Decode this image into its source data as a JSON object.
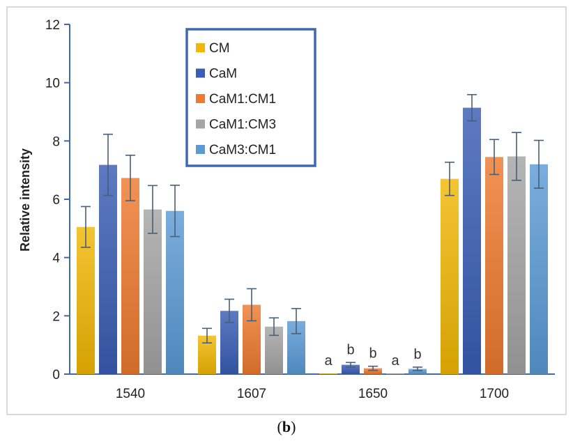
{
  "chart_data": {
    "type": "bar",
    "title": "",
    "xlabel": "",
    "ylabel": "Relative intensity",
    "ylim": [
      0,
      12
    ],
    "yticks": [
      "0",
      "2",
      "4",
      "6",
      "8",
      "10",
      "12"
    ],
    "categories": [
      "1540",
      "1607",
      "1650",
      "1700"
    ],
    "legend_position": "top-center",
    "grid": false,
    "series": [
      {
        "name": "CM",
        "color": "#F2B705",
        "values": [
          5.05,
          1.32,
          0.02,
          6.7
        ],
        "errors": [
          0.7,
          0.25,
          0.0,
          0.57
        ]
      },
      {
        "name": "CaM",
        "color": "#3A5DB5",
        "values": [
          7.18,
          2.17,
          0.32,
          9.14
        ],
        "errors": [
          1.05,
          0.4,
          0.08,
          0.45
        ]
      },
      {
        "name": "CaM1:CM1",
        "color": "#EE7A30",
        "values": [
          6.73,
          2.38,
          0.2,
          7.45
        ],
        "errors": [
          0.78,
          0.55,
          0.07,
          0.6
        ]
      },
      {
        "name": "CaM1:CM3",
        "color": "#A5A5A5",
        "values": [
          5.65,
          1.63,
          0.02,
          7.47
        ],
        "errors": [
          0.82,
          0.3,
          0.0,
          0.82
        ]
      },
      {
        "name": "CaM3:CM1",
        "color": "#5B9BD5",
        "values": [
          5.6,
          1.82,
          0.18,
          7.2
        ],
        "errors": [
          0.88,
          0.43,
          0.06,
          0.82
        ]
      }
    ],
    "annotations": {
      "category": "1650",
      "labels": [
        "a",
        "b",
        "b",
        "a",
        "b"
      ]
    },
    "error_bar_color": "#4A5E75"
  },
  "caption": {
    "open": "(",
    "letter": "b",
    "close": ")"
  }
}
